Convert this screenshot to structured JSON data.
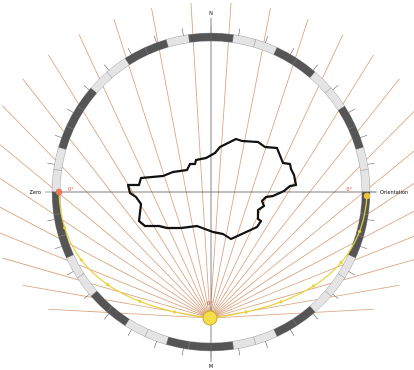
{
  "labels": {
    "north": "N",
    "south": "M",
    "west": "Zero",
    "east": "Orientation",
    "west_value": "0°",
    "east_value": "0°",
    "sun_top": "0°",
    "sun_bottom": "m"
  },
  "colors": {
    "ray": "#d9a27c",
    "ring_dark": "#555555",
    "ring_light": "#e4e4e4",
    "axis": "#555555",
    "sun_path": "#e9d33a",
    "sun": "#f4df4a",
    "building": "#111111",
    "marker": "#d94a3a"
  },
  "rays": {
    "count": 28,
    "azimuth_start_deg": -135,
    "azimuth_end_deg": 135
  },
  "ring": {
    "segments": 44,
    "light_segments": [
      1,
      2,
      5,
      6,
      9,
      10,
      14,
      15,
      16,
      19,
      20,
      24,
      25,
      28,
      29,
      33,
      34,
      38,
      39,
      42
    ]
  },
  "sun_path": {
    "markers": 12
  }
}
